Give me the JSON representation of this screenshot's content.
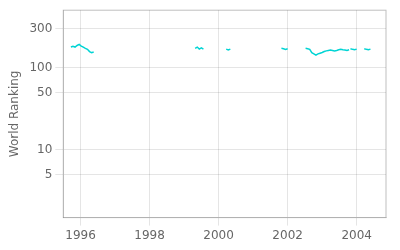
{
  "chart_data": {
    "type": "line",
    "ylabel": "World Ranking",
    "color": "#00d4d4",
    "log": "y",
    "grid": true,
    "xlim": [
      1995.5,
      2004.85
    ],
    "xticks": [
      1996,
      1998,
      2000,
      2002,
      2004
    ],
    "ylim": [
      1.5,
      500
    ],
    "yticks": [
      5,
      10,
      50,
      100,
      300
    ],
    "series": [
      {
        "x": [
          1995.72,
          1995.78,
          1995.84,
          1995.9,
          1995.96,
          1996.02,
          1996.08,
          1996.14,
          1996.2,
          1996.26,
          1996.32,
          1996.38
        ],
        "values": [
          178,
          182,
          178,
          186,
          192,
          183,
          178,
          172,
          167,
          157,
          152,
          155
        ]
      },
      {
        "x": [
          1999.32,
          1999.38,
          1999.44,
          1999.5,
          1999.56
        ],
        "values": [
          172,
          178,
          168,
          174,
          168
        ]
      },
      {
        "x": [
          2000.22,
          2000.28,
          2000.34
        ],
        "values": [
          168,
          164,
          168
        ]
      },
      {
        "x": [
          2001.82,
          2001.88,
          2001.94,
          2002.0
        ],
        "values": [
          172,
          170,
          167,
          170
        ]
      },
      {
        "x": [
          2002.52,
          2002.58,
          2002.64,
          2002.7,
          2002.76,
          2002.82,
          2002.88,
          2002.94,
          2003.0,
          2003.06,
          2003.12,
          2003.18,
          2003.24,
          2003.3,
          2003.36,
          2003.42,
          2003.48,
          2003.54,
          2003.6,
          2003.66,
          2003.72,
          2003.78
        ],
        "values": [
          172,
          170,
          167,
          152,
          147,
          142,
          147,
          150,
          153,
          157,
          160,
          162,
          164,
          162,
          160,
          162,
          165,
          167,
          165,
          164,
          162,
          165
        ]
      },
      {
        "x": [
          2003.82,
          2003.88,
          2003.94,
          2004.0
        ],
        "values": [
          170,
          167,
          165,
          168
        ]
      },
      {
        "x": [
          2004.22,
          2004.28,
          2004.34,
          2004.4
        ],
        "values": [
          170,
          167,
          165,
          168
        ]
      }
    ]
  }
}
